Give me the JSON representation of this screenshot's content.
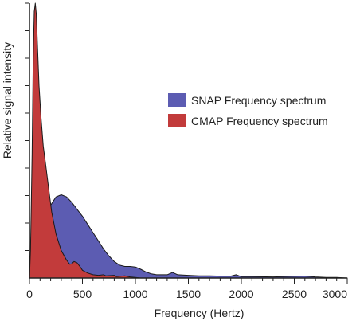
{
  "chart_data": {
    "type": "area",
    "xlabel": "Frequency (Hertz)",
    "ylabel": "Relative signal intensity",
    "xlim": [
      0,
      3000
    ],
    "ylim": [
      0,
      1
    ],
    "x_ticks": [
      0,
      500,
      1000,
      1500,
      2000,
      2500,
      3000
    ],
    "grid": false,
    "legend_position": "right",
    "series": [
      {
        "name": "SNAP Frequency spectrum",
        "color": "#5c5cb2",
        "points": [
          [
            0,
            0
          ],
          [
            30,
            0.12
          ],
          [
            60,
            0.2
          ],
          [
            100,
            0.23
          ],
          [
            150,
            0.25
          ],
          [
            200,
            0.265
          ],
          [
            250,
            0.295
          ],
          [
            300,
            0.303
          ],
          [
            350,
            0.295
          ],
          [
            400,
            0.275
          ],
          [
            450,
            0.25
          ],
          [
            500,
            0.225
          ],
          [
            550,
            0.195
          ],
          [
            600,
            0.165
          ],
          [
            650,
            0.135
          ],
          [
            700,
            0.105
          ],
          [
            750,
            0.08
          ],
          [
            800,
            0.06
          ],
          [
            850,
            0.047
          ],
          [
            900,
            0.042
          ],
          [
            950,
            0.042
          ],
          [
            1000,
            0.04
          ],
          [
            1050,
            0.032
          ],
          [
            1100,
            0.022
          ],
          [
            1150,
            0.015
          ],
          [
            1200,
            0.012
          ],
          [
            1300,
            0.012
          ],
          [
            1350,
            0.02
          ],
          [
            1400,
            0.012
          ],
          [
            1500,
            0.01
          ],
          [
            1600,
            0.008
          ],
          [
            1700,
            0.008
          ],
          [
            1800,
            0.007
          ],
          [
            1900,
            0.007
          ],
          [
            1950,
            0.012
          ],
          [
            2000,
            0.005
          ],
          [
            2100,
            0.005
          ],
          [
            2300,
            0.004
          ],
          [
            2500,
            0.006
          ],
          [
            2600,
            0.007
          ],
          [
            2700,
            0.004
          ],
          [
            2800,
            0.002
          ],
          [
            2900,
            0.002
          ],
          [
            3000,
            0
          ]
        ]
      },
      {
        "name": "CMAP Frequency spectrum",
        "color": "#c23b3b",
        "points": [
          [
            0,
            0
          ],
          [
            10,
            0.1
          ],
          [
            25,
            0.45
          ],
          [
            35,
            0.8
          ],
          [
            45,
            0.97
          ],
          [
            55,
            1.0
          ],
          [
            65,
            0.96
          ],
          [
            75,
            0.85
          ],
          [
            90,
            0.7
          ],
          [
            110,
            0.58
          ],
          [
            130,
            0.48
          ],
          [
            150,
            0.42
          ],
          [
            180,
            0.33
          ],
          [
            210,
            0.24
          ],
          [
            250,
            0.16
          ],
          [
            300,
            0.1
          ],
          [
            350,
            0.065
          ],
          [
            380,
            0.05
          ],
          [
            400,
            0.052
          ],
          [
            420,
            0.06
          ],
          [
            450,
            0.055
          ],
          [
            480,
            0.04
          ],
          [
            500,
            0.028
          ],
          [
            550,
            0.018
          ],
          [
            600,
            0.012
          ],
          [
            650,
            0.01
          ],
          [
            700,
            0.012
          ],
          [
            720,
            0.008
          ],
          [
            800,
            0.01
          ],
          [
            820,
            0.005
          ],
          [
            900,
            0.008
          ],
          [
            950,
            0.004
          ],
          [
            1000,
            0.002
          ],
          [
            1050,
            0
          ]
        ]
      }
    ]
  }
}
